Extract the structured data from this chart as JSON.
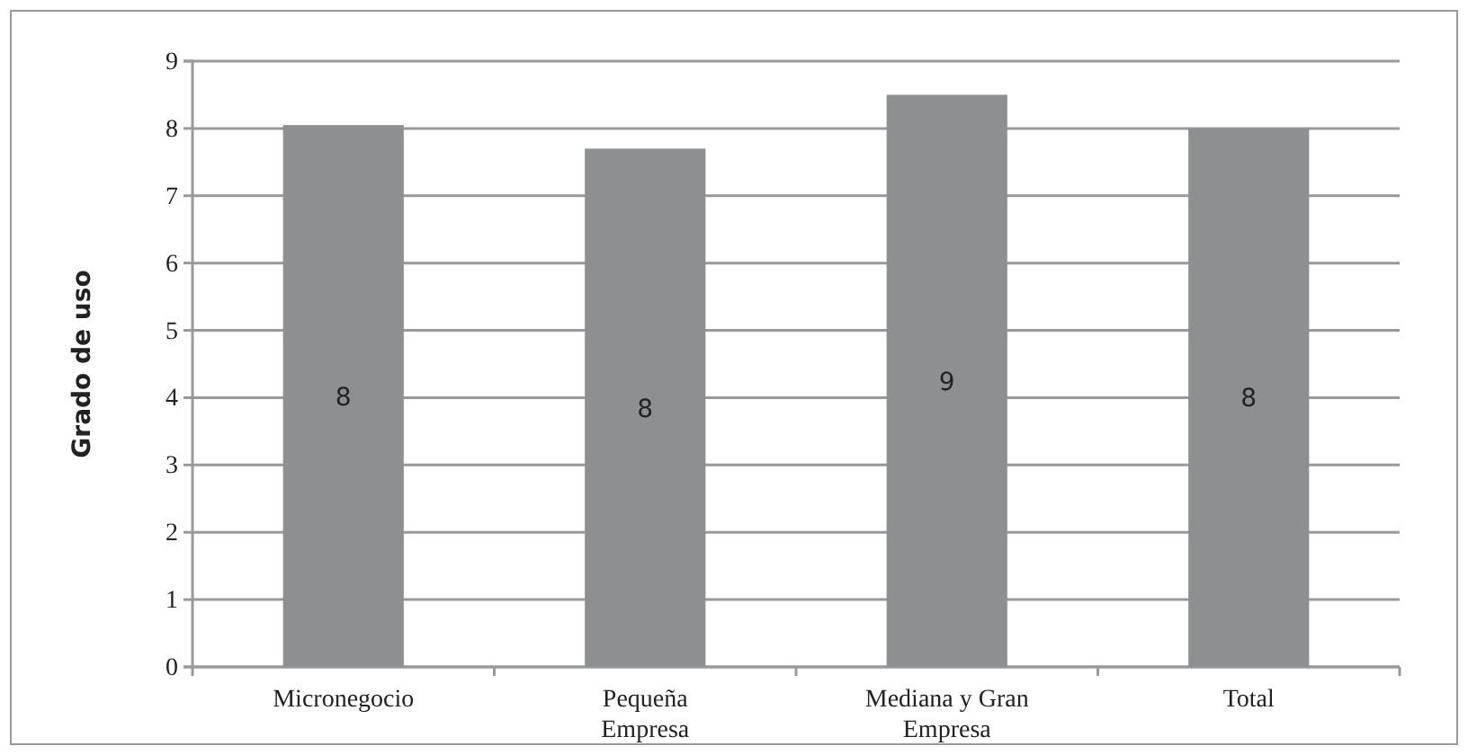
{
  "chart_data": {
    "type": "bar",
    "ylabel": "Grado de uso",
    "categories": [
      "Micronegocio",
      "Pequeña Empresa",
      "Mediana y Gran Empresa",
      "Total"
    ],
    "values": [
      8.05,
      7.7,
      8.5,
      8.0
    ],
    "value_labels": [
      "8",
      "8",
      "9",
      "8"
    ],
    "color": "#8e8f91",
    "ylim": [
      0,
      9
    ],
    "yticks": [
      0,
      1,
      2,
      3,
      4,
      5,
      6,
      7,
      8,
      9
    ],
    "grid": "y"
  }
}
